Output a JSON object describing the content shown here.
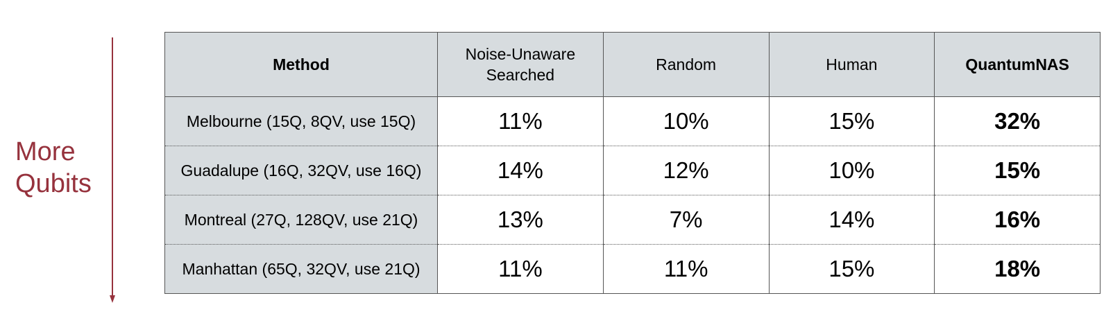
{
  "side_label": {
    "line1": "More",
    "line2": "Qubits"
  },
  "colors": {
    "accent": "#96323d",
    "header_bg": "#d7dcdf",
    "border": "#555555"
  },
  "chart_data": {
    "type": "table",
    "columns": [
      "Method",
      "Noise-Unaware Searched",
      "Random",
      "Human",
      "QuantumNAS"
    ],
    "header": {
      "method": "Method",
      "noise_unaware_line1": "Noise-Unaware",
      "noise_unaware_line2": "Searched",
      "random": "Random",
      "human": "Human",
      "quantumnas": "QuantumNAS"
    },
    "rows": [
      {
        "device": "Melbourne (15Q, 8QV, use 15Q)",
        "noise_unaware": "11%",
        "random": "10%",
        "human": "15%",
        "quantumnas": "32%"
      },
      {
        "device": "Guadalupe (16Q, 32QV, use 16Q)",
        "noise_unaware": "14%",
        "random": "12%",
        "human": "10%",
        "quantumnas": "15%"
      },
      {
        "device": "Montreal (27Q, 128QV, use 21Q)",
        "noise_unaware": "13%",
        "random": "7%",
        "human": "14%",
        "quantumnas": "16%"
      },
      {
        "device": "Manhattan (65Q, 32QV, use 21Q)",
        "noise_unaware": "11%",
        "random": "11%",
        "human": "15%",
        "quantumnas": "18%"
      }
    ]
  }
}
